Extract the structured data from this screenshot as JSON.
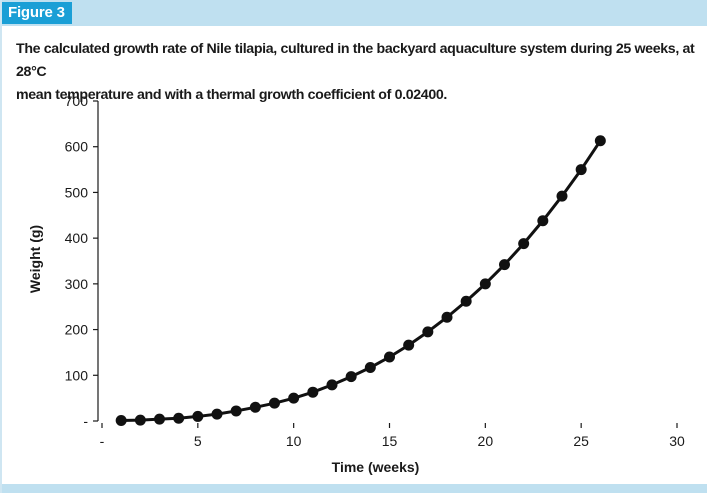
{
  "figure_label": "Figure 3",
  "caption_line1": "The calculated growth rate of Nile tilapia, cultured in the backyard aquaculture system during 25 weeks, at 28°C",
  "caption_line2": "mean temperature and with a thermal growth coefficient of 0.02400.",
  "colors": {
    "accent": "#1a9fd6",
    "header_band": "#bfe0f0",
    "series": "#111111"
  },
  "chart_data": {
    "type": "line",
    "title": "",
    "xlabel": "Time (weeks)",
    "ylabel": "Weight (g)",
    "xlim": [
      0,
      30
    ],
    "ylim": [
      0,
      700
    ],
    "x_ticks": [
      0,
      5,
      10,
      15,
      20,
      25,
      30
    ],
    "x_tick_labels": [
      "-",
      "5",
      "10",
      "15",
      "20",
      "25",
      "30"
    ],
    "y_ticks": [
      0,
      100,
      200,
      300,
      400,
      500,
      600,
      700
    ],
    "y_tick_labels": [
      "-",
      "100",
      "200",
      "300",
      "400",
      "500",
      "600",
      "700"
    ],
    "grid": false,
    "series": [
      {
        "name": "Weight",
        "x": [
          1,
          2,
          3,
          4,
          5,
          6,
          7,
          8,
          9,
          10,
          11,
          12,
          13,
          14,
          15,
          16,
          17,
          18,
          19,
          20,
          21,
          22,
          23,
          24,
          25,
          26
        ],
        "values": [
          1,
          2,
          4,
          6,
          10,
          15,
          22,
          30,
          39,
          50,
          63,
          79,
          97,
          117,
          140,
          166,
          195,
          227,
          262,
          300,
          342,
          388,
          438,
          492,
          550,
          613
        ]
      }
    ]
  }
}
